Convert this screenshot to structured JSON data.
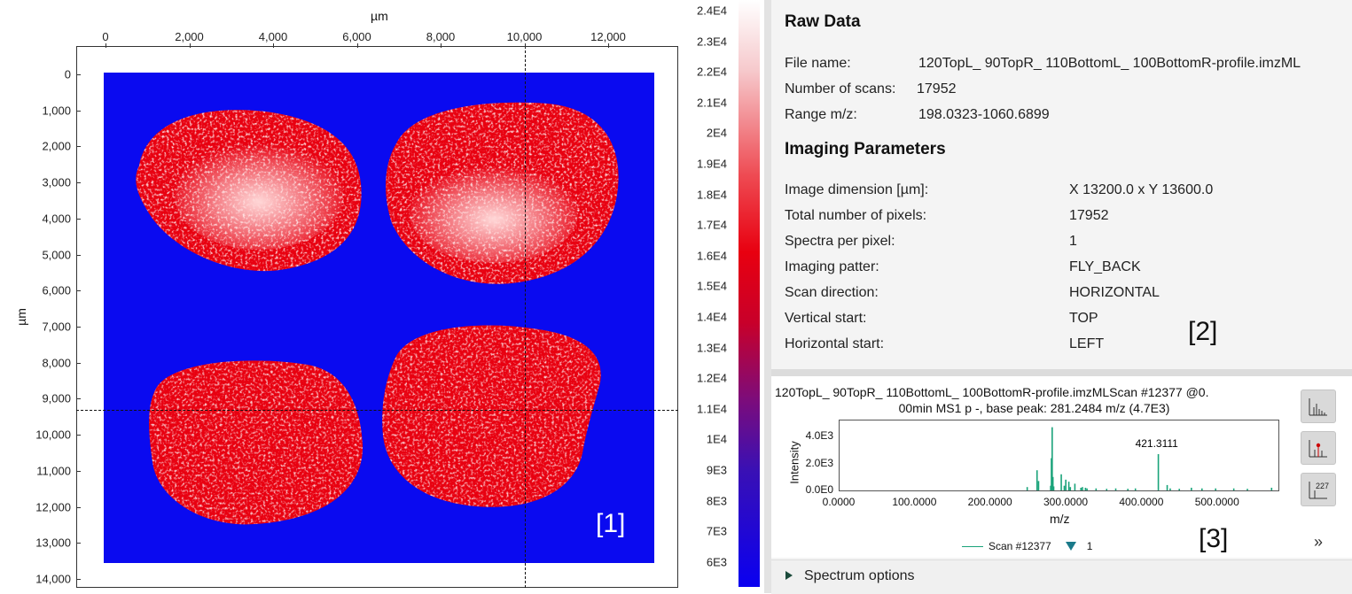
{
  "image_view": {
    "x_axis_label": "µm",
    "y_axis_label": "µm",
    "x_ticks": [
      "0",
      "2,000",
      "4,000",
      "6,000",
      "8,000",
      "10,000",
      "12,000"
    ],
    "y_ticks": [
      "0",
      "1,000",
      "2,000",
      "3,000",
      "4,000",
      "5,000",
      "6,000",
      "7,000",
      "8,000",
      "9,000",
      "10,000",
      "11,000",
      "12,000",
      "13,000",
      "14,000"
    ],
    "crosshair_x_um": 10000,
    "crosshair_y_um": 9300,
    "tag": "[1]",
    "background_color": "#0a0af0",
    "tissue_colors": [
      "#e80010",
      "#ffffff"
    ]
  },
  "colorbar": {
    "labels": [
      "2.4E4",
      "2.3E4",
      "2.2E4",
      "2.1E4",
      "2E4",
      "1.9E4",
      "1.8E4",
      "1.7E4",
      "1.6E4",
      "1.5E4",
      "1.4E4",
      "1.3E4",
      "1.2E4",
      "1.1E4",
      "1E4",
      "9E3",
      "8E3",
      "7E3",
      "6E3"
    ]
  },
  "raw_data": {
    "title": "Raw Data",
    "rows": [
      {
        "key": "File name:",
        "value": "120TopL_ 90TopR_ 110BottomL_ 100BottomR-profile.imzML"
      },
      {
        "key": "Number of scans:",
        "value": "17952"
      },
      {
        "key": "Range m/z:",
        "value": "198.0323-1060.6899"
      }
    ]
  },
  "imaging": {
    "title": "Imaging Parameters",
    "rows": [
      {
        "key": "Image dimension [µm]:",
        "value": "X 13200.0  x  Y 13600.0"
      },
      {
        "key": "Total number of pixels:",
        "value": "17952"
      },
      {
        "key": "Spectra per pixel:",
        "value": "1"
      },
      {
        "key": "Imaging patter:",
        "value": "FLY_BACK"
      },
      {
        "key": "Scan direction:",
        "value": "HORIZONTAL"
      },
      {
        "key": "Vertical start:",
        "value": "TOP"
      },
      {
        "key": "Horizontal start:",
        "value": "LEFT"
      }
    ],
    "tag": "[2]"
  },
  "spectrum": {
    "header_line1": "120TopL_ 90TopR_ 110BottomL_ 100BottomR-profile.imzMLScan #12377 @0.",
    "header_line2": "00min MS1 p -, base peak: 281.2484 m/z (4.7E3)",
    "ylabel": "Intensity",
    "xlabel": "m/z",
    "y_ticks": [
      "4.0E3",
      "2.0E3",
      "0.0E0"
    ],
    "x_ticks": [
      "0.0000",
      "100.0000",
      "200.0000",
      "300.0000",
      "400.0000",
      "500.0000"
    ],
    "peak_label": "421.3111",
    "legend_scan": "Scan #12377",
    "legend_marker": "1",
    "tag": "[3]",
    "more": "»",
    "series_color": "#1aa37a",
    "marker_color": "#1a7a8a"
  },
  "chart_data": {
    "type": "bar",
    "x": [
      248,
      261,
      263,
      279,
      280,
      281,
      282,
      283,
      293,
      297,
      299,
      303,
      305,
      311,
      319,
      321,
      325,
      327,
      339,
      353,
      365,
      381,
      391,
      421.3111,
      433,
      437,
      449,
      465,
      479,
      497,
      521,
      539,
      571
    ],
    "values": [
      250,
      1500,
      700,
      350,
      2400,
      4700,
      1000,
      300,
      1200,
      350,
      800,
      650,
      250,
      500,
      200,
      250,
      200,
      150,
      150,
      120,
      150,
      120,
      150,
      2700,
      400,
      150,
      120,
      200,
      150,
      150,
      150,
      120,
      200
    ],
    "xlim": [
      0,
      580
    ],
    "ylim": [
      0,
      5200
    ],
    "xlabel": "m/z",
    "ylabel": "Intensity"
  },
  "options": {
    "label": "Spectrum options"
  }
}
